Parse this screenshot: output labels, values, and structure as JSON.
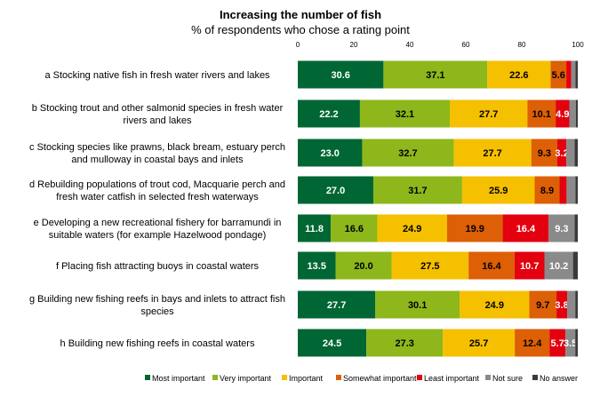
{
  "chart_data": {
    "type": "bar",
    "orientation": "horizontal",
    "stacked": true,
    "title": "Increasing the number of fish",
    "subtitle": "% of respondents who chose a rating point",
    "xlim": [
      0,
      100
    ],
    "xticks": [
      0,
      20,
      40,
      60,
      80,
      100
    ],
    "categories": [
      [
        "a Stocking native fish in fresh water rivers and lakes"
      ],
      [
        "b Stocking trout and other salmonid species in fresh water",
        "rivers and lakes"
      ],
      [
        "c Stocking species like prawns, black bream, estuary perch",
        "and mulloway in coastal bays and inlets"
      ],
      [
        "d Rebuilding populations of trout cod, Macquarie perch and",
        "fresh water catfish in selected fresh waterways"
      ],
      [
        "e Developing a new recreational fishery for barramundi in",
        "suitable waters (for example Hazelwood pondage)"
      ],
      [
        "f Placing fish attracting buoys in coastal waters"
      ],
      [
        "g Building new fishing reefs in bays and inlets to attract fish",
        "species"
      ],
      [
        "h Building new fishing reefs in coastal waters"
      ]
    ],
    "series": [
      {
        "name": "Most important",
        "color": "#006633",
        "label_color": "#ffffff",
        "values": [
          30.6,
          22.2,
          23.0,
          27.0,
          11.8,
          13.5,
          27.7,
          24.5
        ]
      },
      {
        "name": "Very important",
        "color": "#8db71b",
        "label_color": "#000000",
        "values": [
          37.1,
          32.1,
          32.7,
          31.7,
          16.6,
          20.0,
          30.1,
          27.3
        ]
      },
      {
        "name": "Important",
        "color": "#f5c000",
        "label_color": "#000000",
        "values": [
          22.6,
          27.7,
          27.7,
          25.9,
          24.9,
          27.5,
          24.9,
          25.7
        ]
      },
      {
        "name": "Somewhat important",
        "color": "#dd5f06",
        "label_color": "#000000",
        "values": [
          5.6,
          10.1,
          9.3,
          8.9,
          19.9,
          16.4,
          9.7,
          12.4
        ]
      },
      {
        "name": "Least important",
        "color": "#e3000f",
        "label_color": "#ffffff",
        "values": [
          1.8,
          4.9,
          3.2,
          2.5,
          16.4,
          10.7,
          3.8,
          5.7
        ]
      },
      {
        "name": "Not sure",
        "color": "#8a8a8a",
        "label_color": "#ffffff",
        "values": [
          1.5,
          2.3,
          3.0,
          3.2,
          9.3,
          10.2,
          2.9,
          3.5
        ]
      },
      {
        "name": "No answer",
        "color": "#3a3a3a",
        "label_color": "#ffffff",
        "values": [
          0.8,
          0.7,
          1.1,
          0.8,
          1.1,
          1.7,
          0.9,
          0.9
        ]
      }
    ],
    "data_labels": [
      [
        "30.6",
        "37.1",
        "22.6",
        "5.6",
        null,
        null,
        null
      ],
      [
        "22.2",
        "32.1",
        "27.7",
        "10.1",
        "4.9",
        null,
        null
      ],
      [
        "23.0",
        "32.7",
        "27.7",
        "9.3",
        "3.2",
        null,
        null
      ],
      [
        "27.0",
        "31.7",
        "25.9",
        "8.9",
        null,
        null,
        null
      ],
      [
        "11.8",
        "16.6",
        "24.9",
        "19.9",
        "16.4",
        "9.3",
        null
      ],
      [
        "13.5",
        "20.0",
        "27.5",
        "16.4",
        "10.7",
        "10.2",
        null
      ],
      [
        "27.7",
        "30.1",
        "24.9",
        "9.7",
        "3.8",
        null,
        null
      ],
      [
        "24.5",
        "27.3",
        "25.7",
        "12.4",
        "5.7",
        "3.5",
        null
      ]
    ],
    "legend_position": "bottom"
  }
}
